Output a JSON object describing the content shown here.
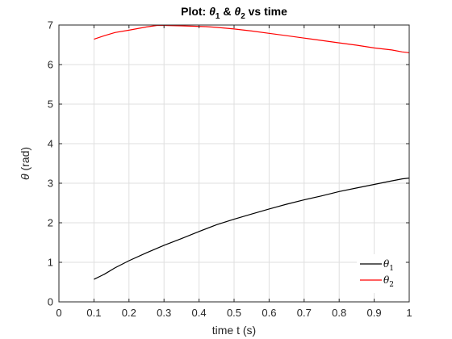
{
  "chart_data": {
    "type": "line",
    "title_prefix": "Plot: ",
    "title_sym1": "θ",
    "title_sub1": "1",
    "title_mid": " & ",
    "title_sym2": "θ",
    "title_sub2": "2",
    "title_suffix": " vs time",
    "xlabel": "time t (s)",
    "ylabel_sym": "θ",
    "ylabel_unit": " (rad)",
    "xlim": [
      0,
      1
    ],
    "ylim": [
      0,
      7
    ],
    "xticks": [
      0,
      0.1,
      0.2,
      0.3,
      0.4,
      0.5,
      0.6,
      0.7,
      0.8,
      0.9,
      1
    ],
    "xtick_labels": [
      "0",
      "0.1",
      "0.2",
      "0.3",
      "0.4",
      "0.5",
      "0.6",
      "0.7",
      "0.8",
      "0.9",
      "1"
    ],
    "yticks": [
      0,
      1,
      2,
      3,
      4,
      5,
      6,
      7
    ],
    "ytick_labels": [
      "0",
      "1",
      "2",
      "3",
      "4",
      "5",
      "6",
      "7"
    ],
    "grid": true,
    "legend_position": "bottom-right",
    "series": [
      {
        "sym": "θ",
        "sub": "1",
        "color": "#000000",
        "x": [
          0.1,
          0.13,
          0.16,
          0.2,
          0.25,
          0.3,
          0.35,
          0.4,
          0.45,
          0.5,
          0.55,
          0.6,
          0.65,
          0.7,
          0.75,
          0.8,
          0.85,
          0.9,
          0.95,
          0.98,
          1.0
        ],
        "y": [
          0.57,
          0.7,
          0.86,
          1.04,
          1.24,
          1.43,
          1.6,
          1.78,
          1.95,
          2.09,
          2.22,
          2.35,
          2.47,
          2.58,
          2.68,
          2.79,
          2.88,
          2.97,
          3.06,
          3.11,
          3.13
        ]
      },
      {
        "sym": "θ",
        "sub": "2",
        "color": "#ff0000",
        "x": [
          0.1,
          0.13,
          0.16,
          0.2,
          0.25,
          0.28,
          0.3,
          0.35,
          0.42,
          0.45,
          0.5,
          0.55,
          0.6,
          0.65,
          0.7,
          0.75,
          0.8,
          0.85,
          0.9,
          0.95,
          0.98,
          1.0
        ],
        "y": [
          6.64,
          6.73,
          6.81,
          6.87,
          6.95,
          6.99,
          6.99,
          6.98,
          6.96,
          6.94,
          6.9,
          6.85,
          6.79,
          6.73,
          6.67,
          6.61,
          6.55,
          6.49,
          6.42,
          6.37,
          6.32,
          6.3
        ]
      }
    ]
  }
}
